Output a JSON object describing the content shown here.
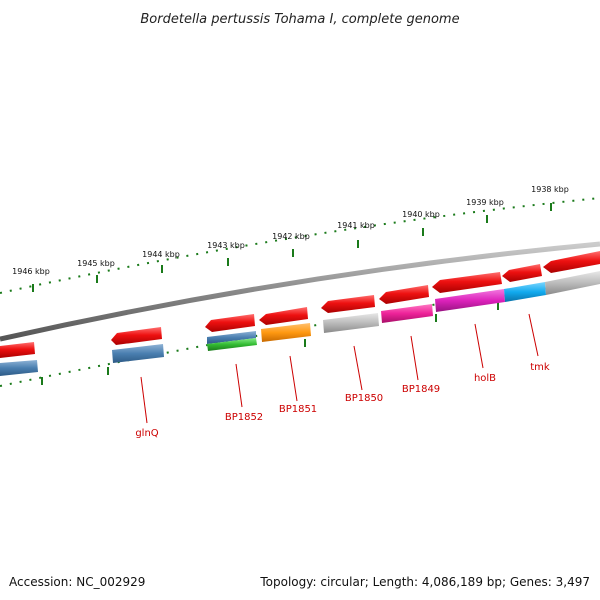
{
  "title": "Bordetella pertussis Tohama I, complete genome",
  "scale_labels": [
    "1946 kbp",
    "1945 kbp",
    "1944 kbp",
    "1943 kbp",
    "1942 kbp",
    "1941 kbp",
    "1940 kbp",
    "1939 kbp",
    "1938 kbp"
  ],
  "gene_labels": [
    "glnQ",
    "BP1852",
    "BP1851",
    "BP1850",
    "BP1849",
    "holB",
    "tmk"
  ],
  "footer": {
    "accession": "Accession: NC_002929",
    "topology": "Topology: circular; Length: 4,086,189 bp; Genes: 3,497"
  },
  "colors": {
    "forward_gene": "#ee1111",
    "steelblue": "#4a7fb0",
    "green": "#33bb33",
    "orange": "#ff9911",
    "gray": "#bbbbbb",
    "pink": "#ee2299",
    "magenta": "#dd22bb",
    "cyan": "#11aaee",
    "scale_ticks": "#1a7a1a",
    "backbone": "#888888",
    "label": "#cc0000"
  },
  "legend": []
}
